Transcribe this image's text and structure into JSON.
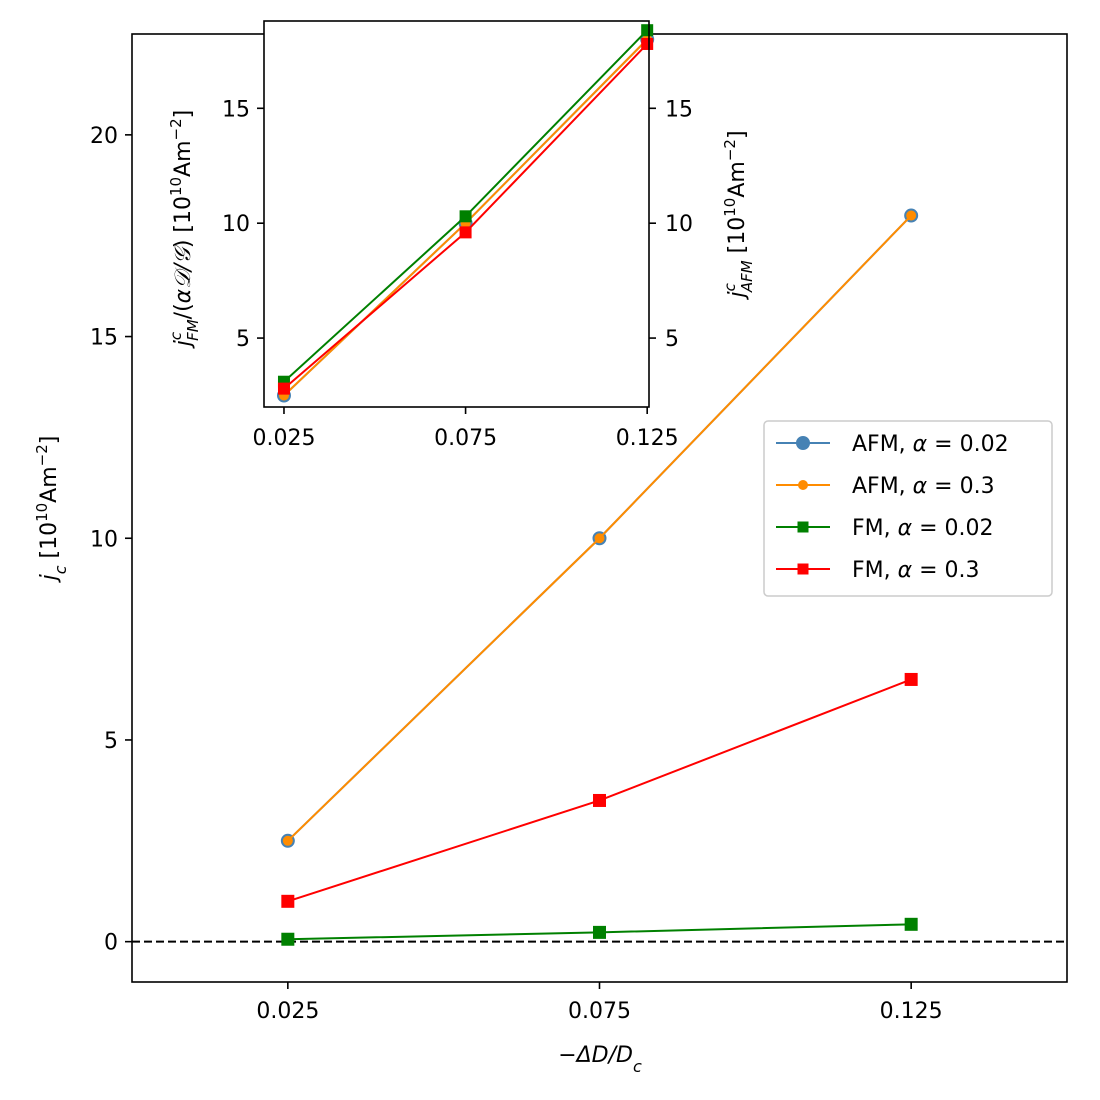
{
  "chart_data": [
    {
      "id": "main",
      "type": "line",
      "x": [
        0.025,
        0.075,
        0.125
      ],
      "x_tick_labels": [
        "0.025",
        "0.075",
        "0.125"
      ],
      "xlim": [
        0.0,
        0.15
      ],
      "ylim": [
        -1.0,
        22.5
      ],
      "y_ticks": [
        0,
        5,
        10,
        15,
        20
      ],
      "y_tick_labels": [
        "0",
        "5",
        "10",
        "15",
        "20"
      ],
      "xlabel": "−ΔD/D",
      "xlabel_sub": "c",
      "ylabel_main": "j",
      "ylabel_sub": "c",
      "ylabel_units": " [10",
      "ylabel_exp": "10",
      "ylabel_units_mid": "Am",
      "ylabel_exp2": "−2",
      "ylabel_close": "]",
      "reference_line": {
        "y": 0,
        "style": "dashed",
        "color": "#000000"
      },
      "legend": {
        "placement": "center-right"
      },
      "series": [
        {
          "name": "AFM, α = 0.02",
          "label_prefix": "AFM, ",
          "label_var": "α",
          "label_value": " = 0.02",
          "values": [
            2.5,
            10.0,
            18.0
          ],
          "color": "#4682b4",
          "marker": "circle",
          "marker_size": "large"
        },
        {
          "name": "AFM, α = 0.3",
          "label_prefix": "AFM, ",
          "label_var": "α",
          "label_value": " = 0.3",
          "values": [
            2.5,
            10.0,
            18.0
          ],
          "color": "#ff8c00",
          "marker": "circle",
          "marker_size": "small"
        },
        {
          "name": "FM, α = 0.02",
          "label_prefix": "FM, ",
          "label_var": "α",
          "label_value": " = 0.02",
          "values": [
            0.06,
            0.23,
            0.43
          ],
          "color": "#008000",
          "marker": "square"
        },
        {
          "name": "FM, α = 0.3",
          "label_prefix": "FM, ",
          "label_var": "α",
          "label_value": " = 0.3",
          "values": [
            1.0,
            3.5,
            6.5
          ],
          "color": "#ff0000",
          "marker": "square"
        }
      ]
    },
    {
      "id": "inset",
      "type": "line",
      "x": [
        0.025,
        0.075,
        0.125
      ],
      "x_tick_labels": [
        "0.025",
        "0.075",
        "0.125"
      ],
      "xlim": [
        0.0195,
        0.1255
      ],
      "ylim": [
        2.0,
        18.8
      ],
      "y_ticks": [
        5,
        10,
        15
      ],
      "y_tick_labels": [
        "5",
        "10",
        "15"
      ],
      "ylabel_left": "j^c_FM/(αD/G) [10^10 Am^-2]",
      "ylabel_right": "j^c_AFM [10^10 Am^-2]",
      "series": [
        {
          "name": "AFM, α = 0.02",
          "values": [
            2.5,
            10.0,
            18.0
          ],
          "color": "#4682b4",
          "marker": "circle"
        },
        {
          "name": "AFM, α = 0.3",
          "values": [
            2.5,
            10.0,
            18.0
          ],
          "color": "#ff8c00",
          "marker": "circle"
        },
        {
          "name": "FM, α = 0.02",
          "values": [
            3.1,
            10.3,
            18.4
          ],
          "color": "#008000",
          "marker": "square"
        },
        {
          "name": "FM, α = 0.3",
          "values": [
            2.8,
            9.6,
            17.8
          ],
          "color": "#ff0000",
          "marker": "square"
        }
      ]
    }
  ]
}
